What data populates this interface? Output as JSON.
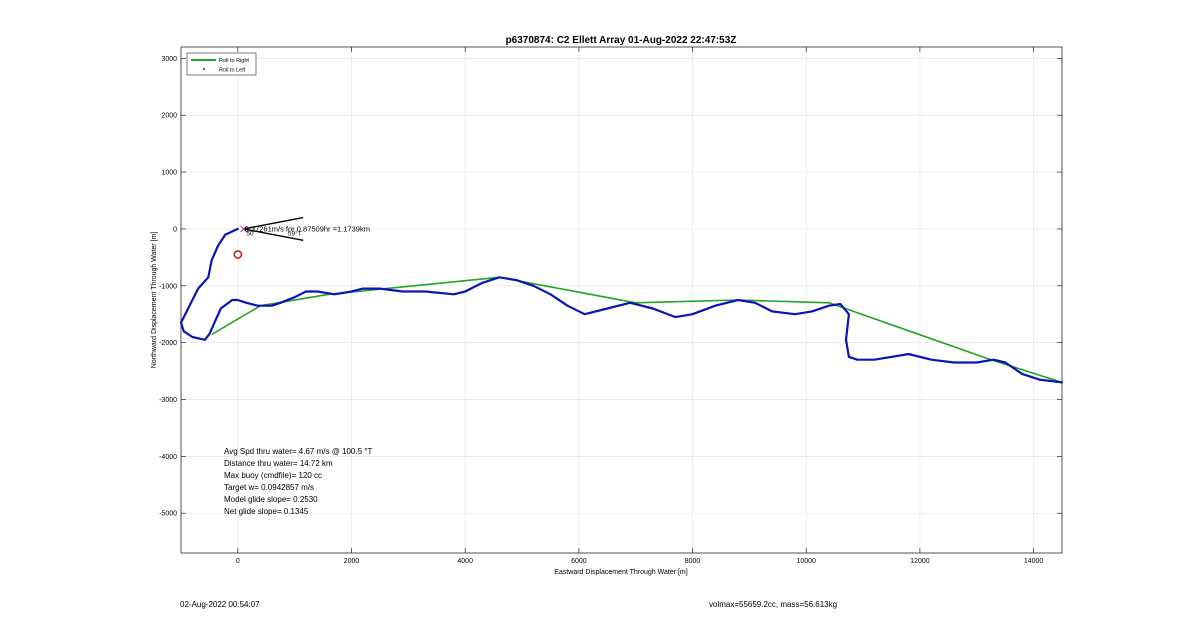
{
  "chart_data": {
    "type": "line",
    "title": "p6370874: C2 Ellett Array 01-Aug-2022 22:47:53Z",
    "xlabel": "Eastward Displacement Through Water [m]",
    "ylabel": "Northward Displacement Through Water [m]",
    "xlim": [
      -1000,
      14500
    ],
    "ylim": [
      -5700,
      3200
    ],
    "xticks": [
      0,
      2000,
      4000,
      6000,
      8000,
      10000,
      12000,
      14000
    ],
    "yticks": [
      3000,
      2000,
      1000,
      0,
      -1000,
      -2000,
      -3000,
      -4000,
      -5000
    ],
    "grid": true,
    "legend_position": "top-left",
    "legend": [
      {
        "label": "Roll to Right",
        "color": "#1fa51f",
        "style": "line"
      },
      {
        "label": "Roll to Left",
        "color": "#000000",
        "style": "dot"
      }
    ],
    "series": [
      {
        "name": "Roll to Right",
        "color": "#1fa51f",
        "x": [
          -450,
          400,
          1600,
          4600,
          7000,
          8800,
          10400,
          13250,
          14500
        ],
        "y": [
          -1850,
          -1350,
          -1150,
          -850,
          -1300,
          -1250,
          -1300,
          -2300,
          -2700
        ]
      },
      {
        "color": "#0a15b5",
        "x": [
          0,
          -220,
          -350,
          -460,
          -520,
          -700,
          -800,
          -900,
          -1000,
          -950,
          -800,
          -580,
          -500,
          -300,
          -100,
          0,
          150,
          350,
          600,
          750,
          1000,
          1200,
          1400,
          1700,
          2000,
          2200,
          2500,
          2900,
          3300,
          3800,
          4000,
          4300,
          4600,
          4900,
          5200,
          5500,
          5800,
          6100,
          6500,
          6900,
          7300,
          7700,
          8000,
          8400,
          8800,
          9100,
          9400,
          9800,
          10100,
          10400,
          10600,
          10750,
          10700,
          10750,
          10900,
          11200,
          11500,
          11800,
          12200,
          12600,
          13000,
          13300,
          13500,
          13800,
          14100,
          14500
        ],
        "y": [
          0,
          -100,
          -300,
          -550,
          -850,
          -1050,
          -1250,
          -1450,
          -1650,
          -1800,
          -1900,
          -1950,
          -1850,
          -1400,
          -1250,
          -1250,
          -1300,
          -1350,
          -1350,
          -1300,
          -1200,
          -1100,
          -1100,
          -1150,
          -1100,
          -1050,
          -1050,
          -1100,
          -1100,
          -1150,
          -1100,
          -950,
          -850,
          -900,
          -1000,
          -1150,
          -1350,
          -1500,
          -1400,
          -1300,
          -1400,
          -1550,
          -1500,
          -1350,
          -1250,
          -1300,
          -1450,
          -1500,
          -1450,
          -1350,
          -1320,
          -1500,
          -1950,
          -2250,
          -2300,
          -2300,
          -2250,
          -2200,
          -2300,
          -2350,
          -2350,
          -2300,
          -2350,
          -2550,
          -2650,
          -2700
        ]
      }
    ],
    "markers": [
      {
        "type": "circle",
        "x": 0,
        "y": -450,
        "color": "#cc1f1f"
      },
      {
        "type": "cross",
        "x": 100,
        "y": 0,
        "color": "#cc33cc"
      }
    ],
    "current_lines": [
      {
        "x": [
          100,
          1150
        ],
        "y": [
          0,
          200
        ]
      },
      {
        "x": [
          100,
          1150
        ],
        "y": [
          0,
          -200
        ]
      }
    ],
    "annotations": [
      {
        "text": "0.37261m/s for 0.87509hr =1.1739km",
        "x": 120,
        "y": 0
      },
      {
        "text": "50",
        "x": 150,
        "y": -70
      },
      {
        "text": "59°T",
        "x": 880,
        "y": -70
      }
    ],
    "stats": [
      "Avg Spd thru water=  4.67 m/s @ 100.5 °T",
      "Distance thru water= 14.72 km",
      "Max buoy (cmdfile)= 120 cc",
      "Target w= 0.0942857 m/s",
      "Model glide slope= 0.2530",
      "Net glide slope= 0.1345"
    ]
  },
  "footer": {
    "timestamp": "02-Aug-2022 00:54:07",
    "summary": "volmax=55659.2cc, mass=56.613kg"
  }
}
